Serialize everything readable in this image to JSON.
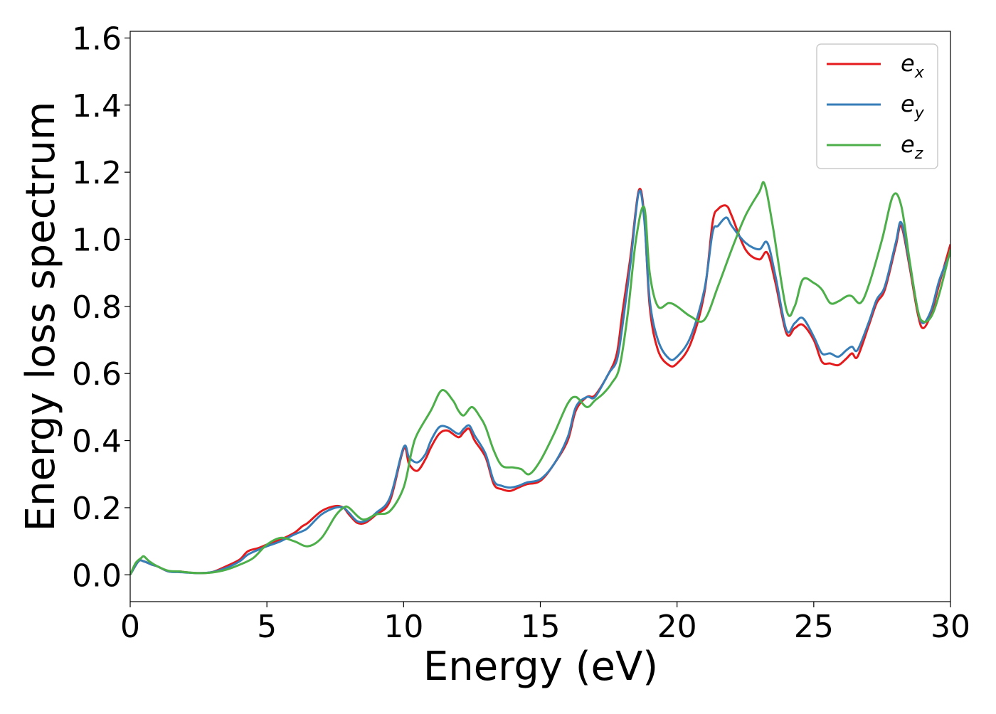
{
  "chart_data": {
    "type": "line",
    "title": "",
    "xlabel": "Energy (eV)",
    "ylabel": "Energy loss spectrum",
    "xlim": [
      0,
      30
    ],
    "ylim": [
      -0.08,
      1.62
    ],
    "xticks": [
      0,
      5,
      10,
      15,
      20,
      25,
      30
    ],
    "xtick_labels": [
      "0",
      "5",
      "10",
      "15",
      "20",
      "25",
      "30"
    ],
    "yticks": [
      0.0,
      0.2,
      0.4,
      0.6,
      0.8,
      1.0,
      1.2,
      1.4,
      1.6
    ],
    "ytick_labels": [
      "0.0",
      "0.2",
      "0.4",
      "0.6",
      "0.8",
      "1.0",
      "1.2",
      "1.4",
      "1.6"
    ],
    "grid": false,
    "legend_position": "top-right",
    "series": [
      {
        "name": "e_x",
        "legend_base": "e",
        "legend_sub": "x",
        "color": "#e41a1c",
        "x": [
          0,
          0.3,
          0.5,
          0.8,
          1.0,
          1.4,
          1.8,
          2.0,
          2.5,
          3.0,
          3.5,
          4.0,
          4.3,
          4.7,
          5.0,
          5.5,
          6.0,
          6.3,
          6.5,
          7.0,
          7.5,
          7.8,
          8.0,
          8.3,
          8.6,
          9.0,
          9.5,
          10.0,
          10.2,
          10.5,
          10.8,
          11.0,
          11.3,
          11.6,
          12.0,
          12.2,
          12.4,
          12.6,
          13.0,
          13.3,
          13.6,
          13.9,
          14.2,
          14.5,
          15.0,
          15.5,
          16.0,
          16.3,
          16.7,
          17.0,
          17.5,
          17.8,
          18.0,
          18.3,
          18.6,
          18.8,
          19.0,
          19.3,
          19.7,
          20.0,
          20.5,
          21.0,
          21.3,
          21.5,
          21.8,
          22.0,
          22.5,
          23.0,
          23.3,
          23.6,
          24.0,
          24.3,
          24.6,
          25.0,
          25.3,
          25.6,
          25.9,
          26.2,
          26.4,
          26.6,
          27.0,
          27.3,
          27.6,
          28.0,
          28.2,
          28.5,
          28.8,
          29.0,
          29.3,
          29.6,
          30.0
        ],
        "values": [
          0.0,
          0.04,
          0.04,
          0.03,
          0.025,
          0.01,
          0.01,
          0.008,
          0.005,
          0.008,
          0.025,
          0.045,
          0.07,
          0.08,
          0.09,
          0.105,
          0.125,
          0.145,
          0.155,
          0.19,
          0.205,
          0.2,
          0.18,
          0.155,
          0.155,
          0.18,
          0.22,
          0.375,
          0.33,
          0.31,
          0.345,
          0.38,
          0.42,
          0.43,
          0.41,
          0.425,
          0.435,
          0.4,
          0.35,
          0.27,
          0.255,
          0.25,
          0.26,
          0.27,
          0.28,
          0.33,
          0.4,
          0.49,
          0.53,
          0.535,
          0.6,
          0.66,
          0.78,
          0.95,
          1.145,
          1.07,
          0.8,
          0.67,
          0.625,
          0.63,
          0.69,
          0.84,
          1.05,
          1.09,
          1.1,
          1.07,
          0.97,
          0.94,
          0.96,
          0.87,
          0.72,
          0.735,
          0.745,
          0.7,
          0.635,
          0.63,
          0.625,
          0.645,
          0.66,
          0.65,
          0.74,
          0.81,
          0.85,
          0.98,
          1.04,
          0.92,
          0.78,
          0.735,
          0.78,
          0.87,
          0.985
        ]
      },
      {
        "name": "e_y",
        "legend_base": "e",
        "legend_sub": "y",
        "color": "#377eb8",
        "x": [
          0,
          0.3,
          0.5,
          0.8,
          1.0,
          1.4,
          1.8,
          2.0,
          2.5,
          3.0,
          3.5,
          4.0,
          4.3,
          4.7,
          5.0,
          5.5,
          6.0,
          6.3,
          6.5,
          7.0,
          7.5,
          7.8,
          8.0,
          8.3,
          8.6,
          9.0,
          9.5,
          10.0,
          10.2,
          10.5,
          10.8,
          11.0,
          11.3,
          11.6,
          12.0,
          12.2,
          12.4,
          12.6,
          13.0,
          13.3,
          13.6,
          13.9,
          14.2,
          14.5,
          15.0,
          15.5,
          16.0,
          16.3,
          16.7,
          17.0,
          17.5,
          17.8,
          18.0,
          18.3,
          18.6,
          18.8,
          19.0,
          19.3,
          19.7,
          20.0,
          20.5,
          21.0,
          21.3,
          21.5,
          21.8,
          22.0,
          22.5,
          23.0,
          23.3,
          23.6,
          24.0,
          24.3,
          24.6,
          25.0,
          25.3,
          25.6,
          25.9,
          26.2,
          26.4,
          26.6,
          27.0,
          27.3,
          27.6,
          28.0,
          28.2,
          28.5,
          28.8,
          29.0,
          29.3,
          29.6,
          30.0
        ],
        "values": [
          0.0,
          0.04,
          0.04,
          0.03,
          0.025,
          0.01,
          0.008,
          0.007,
          0.005,
          0.008,
          0.02,
          0.04,
          0.06,
          0.075,
          0.085,
          0.1,
          0.12,
          0.13,
          0.14,
          0.18,
          0.2,
          0.2,
          0.185,
          0.16,
          0.16,
          0.185,
          0.23,
          0.38,
          0.35,
          0.335,
          0.36,
          0.4,
          0.44,
          0.44,
          0.42,
          0.435,
          0.445,
          0.415,
          0.36,
          0.28,
          0.265,
          0.26,
          0.265,
          0.275,
          0.285,
          0.33,
          0.41,
          0.5,
          0.53,
          0.53,
          0.6,
          0.64,
          0.74,
          0.93,
          1.14,
          1.06,
          0.82,
          0.7,
          0.645,
          0.65,
          0.71,
          0.85,
          1.02,
          1.04,
          1.065,
          1.04,
          0.99,
          0.97,
          0.99,
          0.89,
          0.73,
          0.75,
          0.765,
          0.71,
          0.66,
          0.66,
          0.65,
          0.67,
          0.68,
          0.67,
          0.75,
          0.82,
          0.86,
          0.99,
          1.05,
          0.93,
          0.79,
          0.75,
          0.79,
          0.88,
          0.96
        ]
      },
      {
        "name": "e_z",
        "legend_base": "e",
        "legend_sub": "z",
        "color": "#4daf4a",
        "x": [
          0,
          0.2,
          0.4,
          0.5,
          0.7,
          1.0,
          1.4,
          1.8,
          2.0,
          2.5,
          3.0,
          3.5,
          4.0,
          4.5,
          5.0,
          5.5,
          6.0,
          6.5,
          7.0,
          7.5,
          7.8,
          8.0,
          8.5,
          9.0,
          9.5,
          10.0,
          10.3,
          10.5,
          11.0,
          11.4,
          11.8,
          12.0,
          12.2,
          12.5,
          12.8,
          13.0,
          13.3,
          13.6,
          14.0,
          14.3,
          14.6,
          15.0,
          15.5,
          16.0,
          16.3,
          16.7,
          17.0,
          17.3,
          17.6,
          17.9,
          18.2,
          18.5,
          18.8,
          19.0,
          19.3,
          19.7,
          20.0,
          20.5,
          21.0,
          21.5,
          22.0,
          22.5,
          23.0,
          23.2,
          23.5,
          24.0,
          24.3,
          24.6,
          25.0,
          25.3,
          25.6,
          25.9,
          26.2,
          26.4,
          26.7,
          27.0,
          27.5,
          27.9,
          28.2,
          28.5,
          28.8,
          29.0,
          29.3,
          29.6,
          30.0
        ],
        "values": [
          0.0,
          0.035,
          0.05,
          0.055,
          0.04,
          0.025,
          0.012,
          0.01,
          0.008,
          0.005,
          0.007,
          0.015,
          0.03,
          0.05,
          0.09,
          0.11,
          0.1,
          0.085,
          0.11,
          0.175,
          0.2,
          0.2,
          0.165,
          0.18,
          0.19,
          0.26,
          0.37,
          0.42,
          0.49,
          0.55,
          0.52,
          0.49,
          0.475,
          0.5,
          0.47,
          0.44,
          0.37,
          0.325,
          0.32,
          0.315,
          0.3,
          0.34,
          0.42,
          0.51,
          0.53,
          0.5,
          0.52,
          0.54,
          0.57,
          0.62,
          0.78,
          1.0,
          1.095,
          0.9,
          0.8,
          0.81,
          0.8,
          0.77,
          0.76,
          0.86,
          0.97,
          1.07,
          1.14,
          1.165,
          1.04,
          0.79,
          0.8,
          0.88,
          0.87,
          0.85,
          0.81,
          0.815,
          0.83,
          0.83,
          0.81,
          0.86,
          1.0,
          1.13,
          1.1,
          0.94,
          0.79,
          0.755,
          0.77,
          0.84,
          0.97
        ]
      }
    ]
  }
}
